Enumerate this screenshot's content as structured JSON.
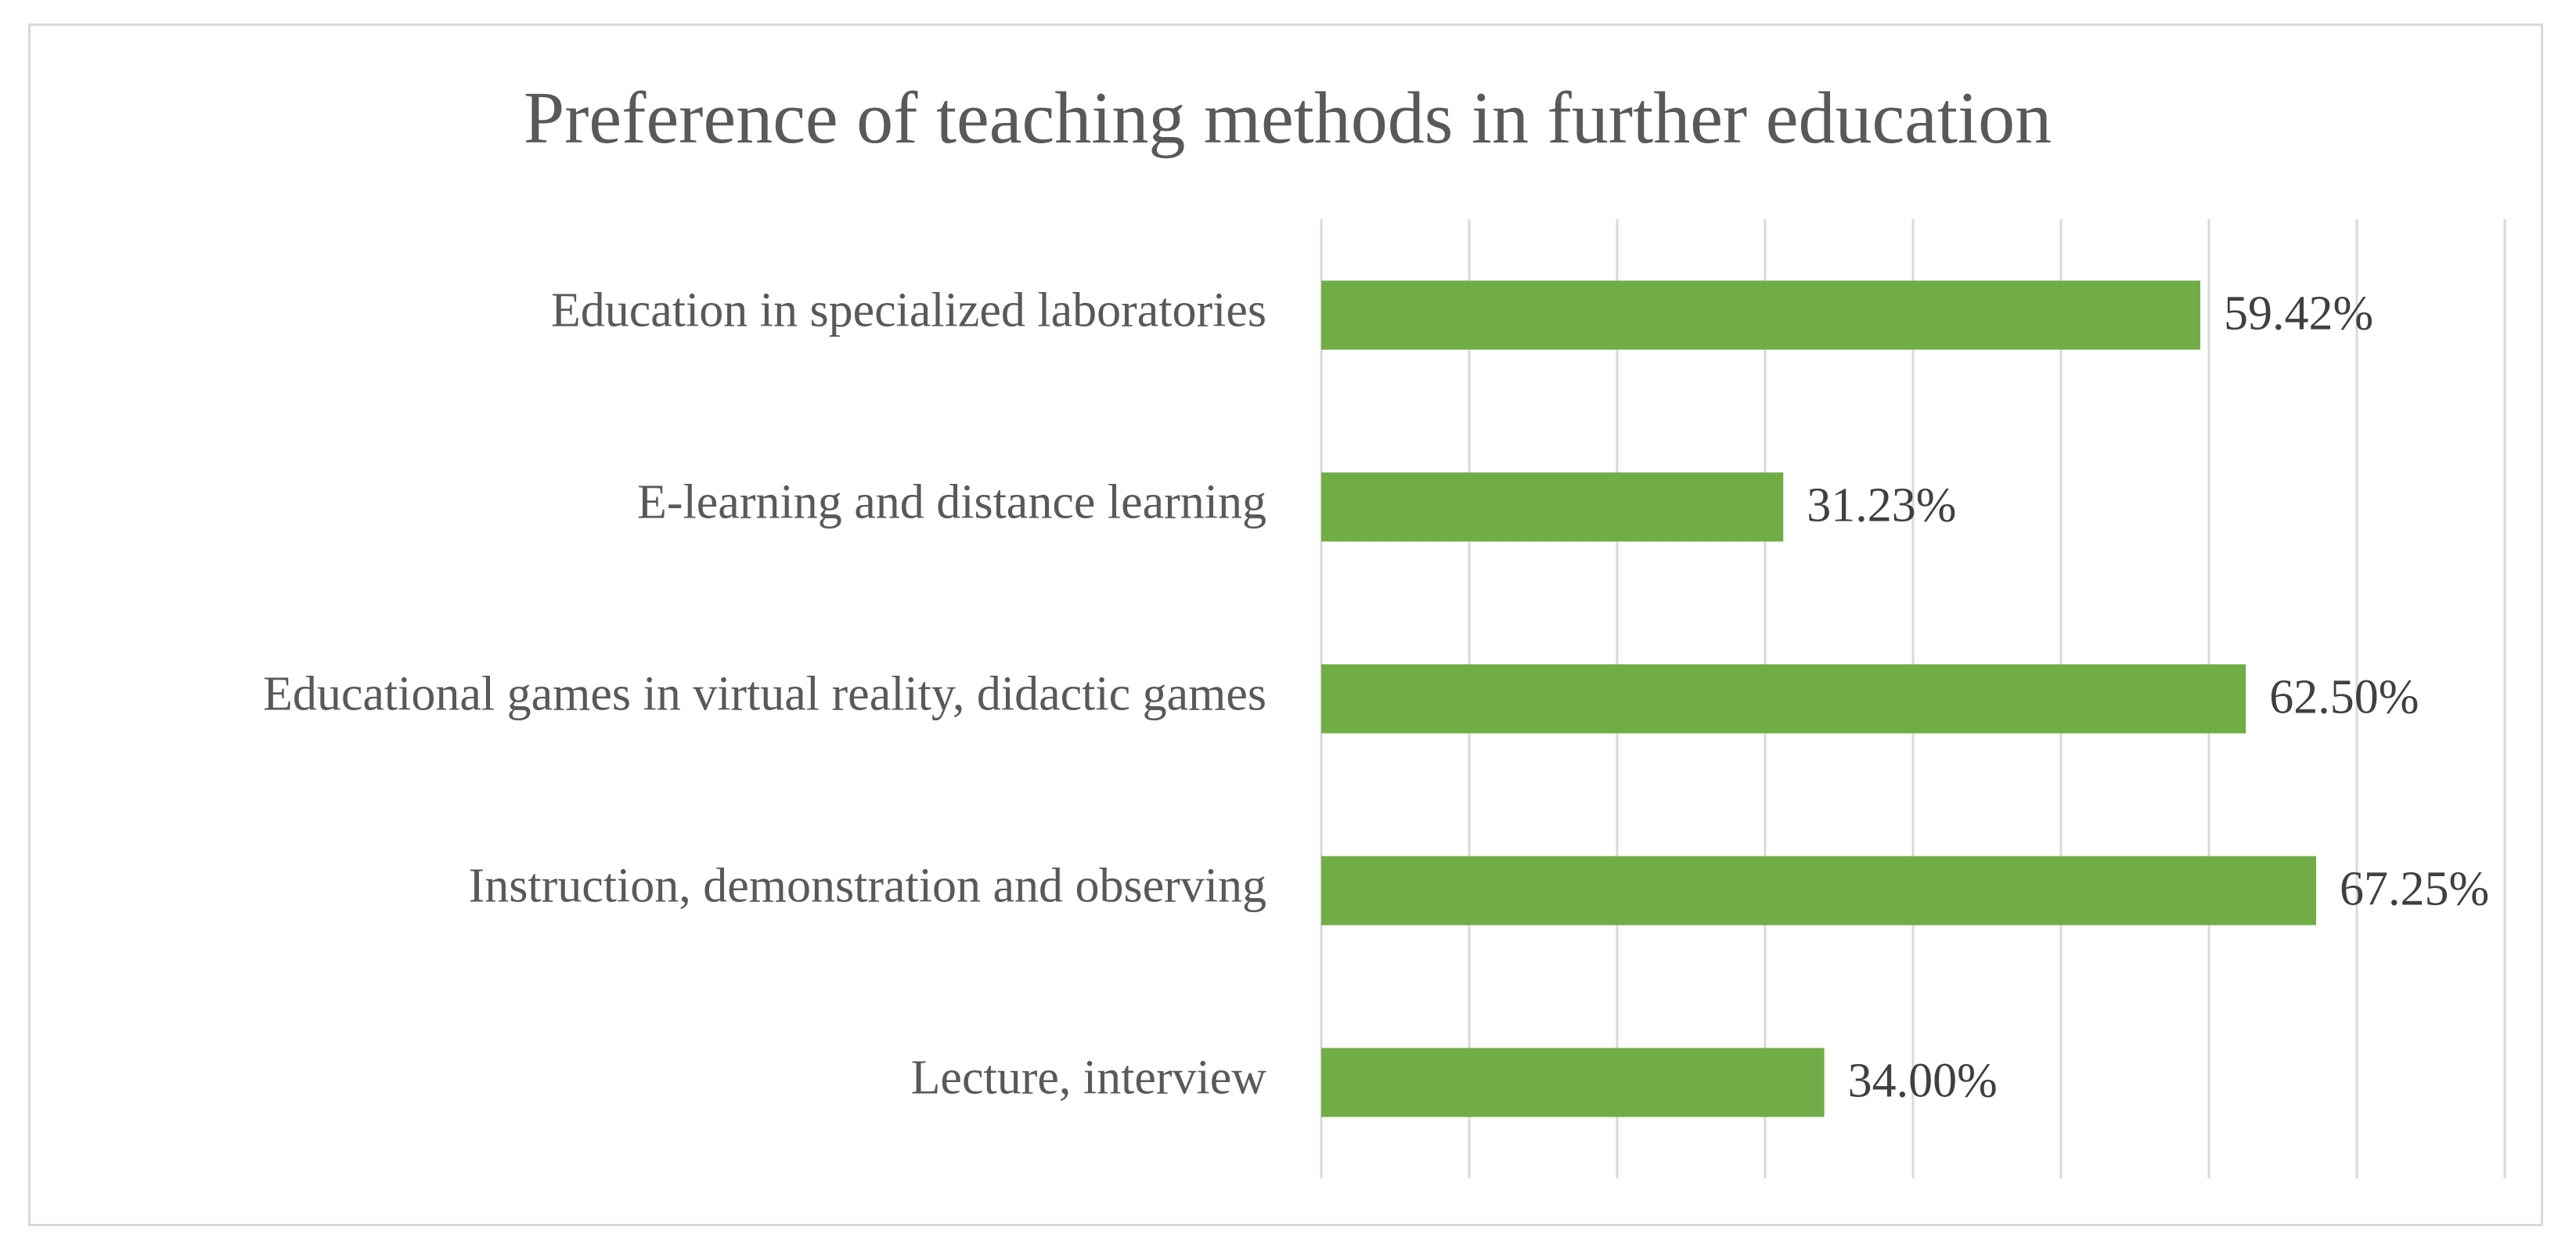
{
  "chart_data": {
    "type": "bar",
    "orientation": "horizontal",
    "title": "Preference of teaching methods in further education",
    "xlabel": "",
    "ylabel": "",
    "categories": [
      "Education in specialized laboratories",
      "E-learning and distance learning",
      "Educational games in virtual reality, didactic games",
      "Instruction, demonstration and observing",
      "Lecture, interview"
    ],
    "values": [
      59.42,
      31.23,
      62.5,
      67.25,
      34.0
    ],
    "data_labels": [
      "59.42%",
      "31.23%",
      "62.50%",
      "67.25%",
      "34.00%"
    ],
    "xlim": [
      0,
      80
    ],
    "x_grid_step": 10,
    "grid": true,
    "legend": "none",
    "bar_color": "#70ad47",
    "grid_color": "#d9d9d9"
  }
}
